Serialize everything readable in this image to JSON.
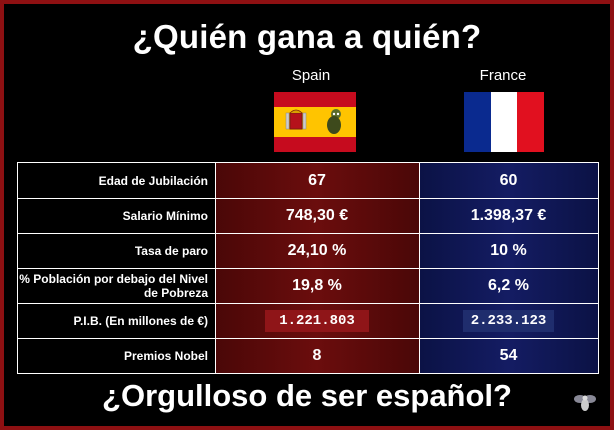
{
  "title": "¿Quién gana a quién?",
  "countries": {
    "spain": "Spain",
    "france": "France"
  },
  "colors": {
    "border": "#8e1012",
    "spain_bg": "#6b0d0d",
    "france_bg": "#141c63"
  },
  "rows": [
    {
      "label": "Edad de Jubilación",
      "spain": "67",
      "france": "60"
    },
    {
      "label": "Salario Mínimo",
      "spain": "748,30 €",
      "france": "1.398,37 €"
    },
    {
      "label": "Tasa de paro",
      "spain": "24,10 %",
      "france": "10 %"
    },
    {
      "label": "% Población por debajo del Nivel de Pobreza",
      "spain": "19,8 %",
      "france": "6,2 %"
    },
    {
      "label": "P.I.B. (En millones de €)",
      "spain": "1.221.803",
      "france": "2.233.123"
    },
    {
      "label": "Premios Nobel",
      "spain": "8",
      "france": "54"
    }
  ],
  "footer": "¿Orgulloso de ser español?",
  "icons": {
    "watermark": "fly-icon"
  }
}
